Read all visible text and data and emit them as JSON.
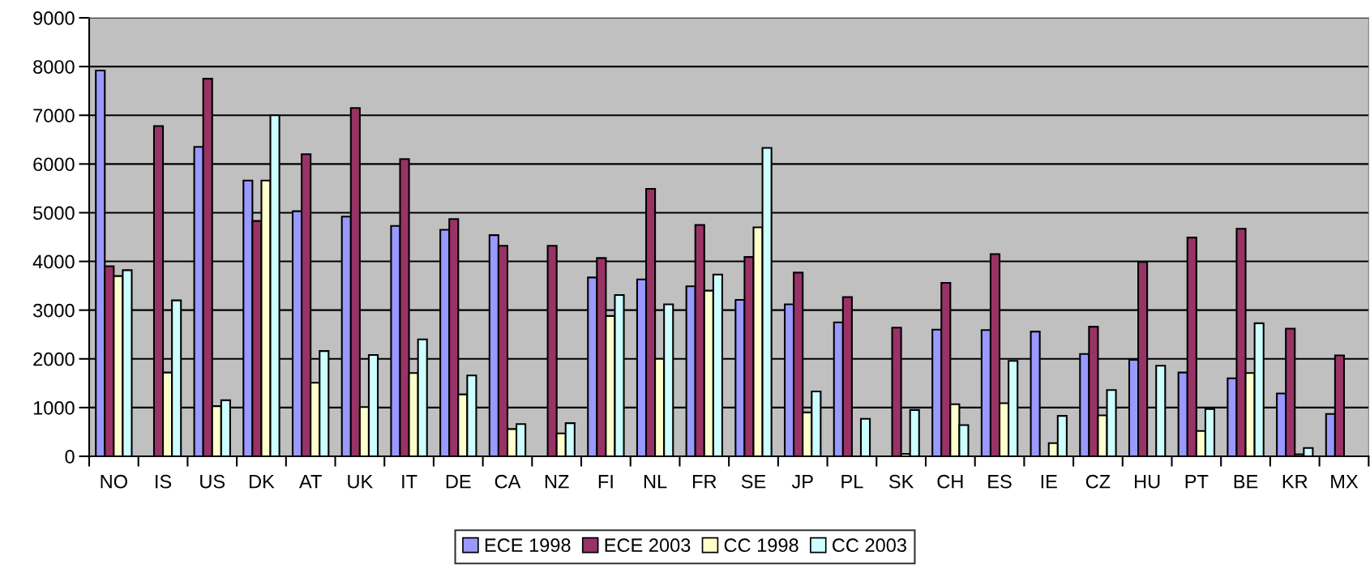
{
  "chart_data": {
    "type": "bar",
    "categories": [
      "NO",
      "IS",
      "US",
      "DK",
      "AT",
      "UK",
      "IT",
      "DE",
      "CA",
      "NZ",
      "FI",
      "NL",
      "FR",
      "SE",
      "JP",
      "PL",
      "SK",
      "CH",
      "ES",
      "IE",
      "CZ",
      "HU",
      "PT",
      "BE",
      "KR",
      "MX"
    ],
    "series": [
      {
        "name": "ECE 1998",
        "color": "#9999ff",
        "values": [
          7920,
          null,
          6350,
          5660,
          5030,
          4920,
          4730,
          4650,
          4540,
          null,
          3670,
          3630,
          3490,
          3210,
          3120,
          2750,
          null,
          2600,
          2590,
          2560,
          2100,
          1980,
          1720,
          1600,
          1290,
          870
        ]
      },
      {
        "name": "ECE 2003",
        "color": "#993366",
        "values": [
          3900,
          6780,
          7750,
          4830,
          6200,
          7150,
          6100,
          4870,
          4320,
          4320,
          4070,
          5490,
          4750,
          4090,
          3770,
          3270,
          2640,
          3560,
          4150,
          null,
          2660,
          3990,
          4490,
          4670,
          2620,
          2070
        ]
      },
      {
        "name": "CC 1998",
        "color": "#ffffcc",
        "values": [
          3700,
          1720,
          1030,
          5660,
          1510,
          1010,
          1710,
          1270,
          560,
          470,
          2880,
          2000,
          3400,
          4700,
          900,
          null,
          50,
          1070,
          1090,
          270,
          840,
          null,
          520,
          1710,
          40,
          null
        ]
      },
      {
        "name": "CC 2003",
        "color": "#ccffff",
        "values": [
          3820,
          3200,
          1150,
          7000,
          2160,
          2080,
          2400,
          1660,
          660,
          680,
          3310,
          3120,
          3730,
          6330,
          1330,
          770,
          950,
          640,
          1960,
          830,
          1360,
          1860,
          970,
          2730,
          170,
          null
        ]
      }
    ],
    "ylim": [
      0,
      9000
    ],
    "yticks": [
      0,
      1000,
      2000,
      3000,
      4000,
      5000,
      6000,
      7000,
      8000,
      9000
    ],
    "grid": "y",
    "legend": "bottom"
  }
}
